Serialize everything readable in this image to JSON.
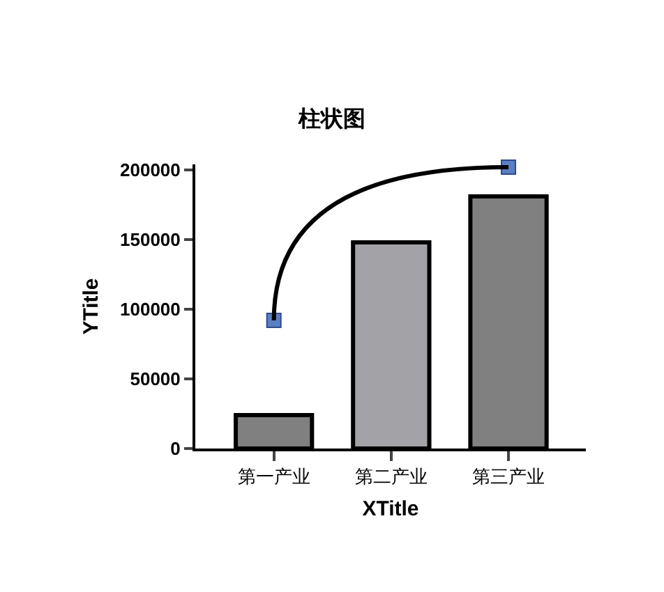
{
  "chart_data": {
    "type": "bar",
    "title": "柱状图",
    "xlabel": "XTitle",
    "ylabel": "YTitle",
    "categories": [
      "第一产业",
      "第二产业",
      "第三产业"
    ],
    "series": [
      {
        "colors": [
          "#808080",
          "#a3a2a7",
          "#808080"
        ],
        "values": [
          24000,
          148000,
          181000
        ]
      },
      {
        "type": "line",
        "color": "#000000",
        "marker": "square",
        "values": [
          92000,
          null,
          202000
        ]
      }
    ],
    "ylim": [
      0,
      204000
    ],
    "yticks": [
      0,
      50000,
      100000,
      150000,
      200000
    ],
    "grid": false
  }
}
